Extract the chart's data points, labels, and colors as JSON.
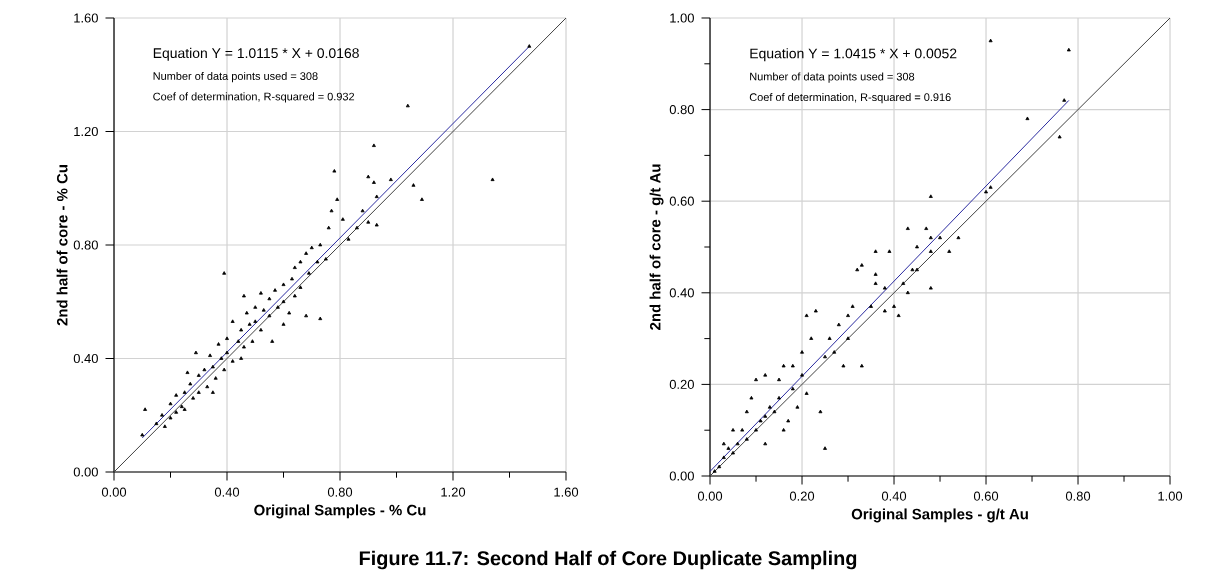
{
  "chart_data": [
    {
      "type": "scatter",
      "xlabel": "Original Samples - % Cu",
      "ylabel": "2nd half of core - % Cu",
      "grid": true,
      "xlim": [
        0,
        1.6
      ],
      "ylim": [
        0,
        1.6
      ],
      "xticks": [
        {
          "value": 0,
          "label": "0.00"
        },
        {
          "value": 0.2,
          "label": null
        },
        {
          "value": 0.4,
          "label": "0.40"
        },
        {
          "value": 0.6,
          "label": null
        },
        {
          "value": 0.8,
          "label": "0.80"
        },
        {
          "value": 1.0,
          "label": null
        },
        {
          "value": 1.2,
          "label": "1.20"
        },
        {
          "value": 1.4,
          "label": null
        },
        {
          "value": 1.6,
          "label": "1.60"
        }
      ],
      "yticks": [
        {
          "value": 0,
          "label": "0.00"
        },
        {
          "value": 0.4,
          "label": "0.40"
        },
        {
          "value": 0.8,
          "label": "0.80"
        },
        {
          "value": 1.2,
          "label": "1.20"
        },
        {
          "value": 1.6,
          "label": "1.60"
        }
      ],
      "annotations": [
        "Equation Y = 1.0115 * X + 0.0168",
        "Number of data points used = 308",
        "Coef of determination, R-squared = 0.932"
      ],
      "series": [
        {
          "marker": "triangle",
          "color": "#000000",
          "x": [
            1.47,
            1.04,
            1.34,
            0.92,
            1.06,
            1.09,
            0.98,
            0.9,
            0.92,
            0.93,
            0.93,
            0.88,
            0.86,
            0.9,
            0.78,
            0.79,
            0.77,
            0.81,
            0.83,
            0.39,
            0.73,
            0.68,
            0.1,
            0.11,
            0.15,
            0.17,
            0.18,
            0.2,
            0.2,
            0.22,
            0.22,
            0.24,
            0.25,
            0.25,
            0.27,
            0.28,
            0.29,
            0.3,
            0.3,
            0.32,
            0.33,
            0.34,
            0.35,
            0.36,
            0.37,
            0.38,
            0.39,
            0.4,
            0.4,
            0.42,
            0.42,
            0.44,
            0.45,
            0.46,
            0.47,
            0.48,
            0.49,
            0.5,
            0.5,
            0.52,
            0.52,
            0.53,
            0.55,
            0.55,
            0.57,
            0.58,
            0.6,
            0.6,
            0.62,
            0.63,
            0.64,
            0.66,
            0.66,
            0.68,
            0.69,
            0.7,
            0.72,
            0.73,
            0.75,
            0.76,
            0.56,
            0.46,
            0.35,
            0.26,
            0.6,
            0.64,
            0.45
          ],
          "values": [
            1.5,
            1.29,
            1.03,
            1.15,
            1.01,
            0.96,
            1.03,
            1.04,
            1.02,
            0.97,
            0.87,
            0.92,
            0.86,
            0.88,
            1.06,
            0.96,
            0.92,
            0.89,
            0.82,
            0.7,
            0.54,
            0.55,
            0.13,
            0.22,
            0.17,
            0.2,
            0.16,
            0.24,
            0.19,
            0.21,
            0.27,
            0.23,
            0.28,
            0.22,
            0.31,
            0.26,
            0.42,
            0.34,
            0.28,
            0.36,
            0.3,
            0.41,
            0.37,
            0.33,
            0.45,
            0.4,
            0.36,
            0.47,
            0.42,
            0.53,
            0.39,
            0.46,
            0.5,
            0.44,
            0.56,
            0.52,
            0.46,
            0.58,
            0.53,
            0.63,
            0.5,
            0.57,
            0.61,
            0.55,
            0.64,
            0.58,
            0.6,
            0.66,
            0.56,
            0.68,
            0.62,
            0.74,
            0.65,
            0.77,
            0.7,
            0.79,
            0.74,
            0.8,
            0.75,
            0.86,
            0.46,
            0.62,
            0.28,
            0.35,
            0.52,
            0.72,
            0.4
          ]
        },
        {
          "type": "line",
          "marker": "none",
          "color": "#2a2aa0",
          "x": [
            0.1,
            1.47
          ],
          "values": [
            0.12,
            1.5
          ]
        },
        {
          "type": "line",
          "marker": "none",
          "color": "#404040",
          "x": [
            0,
            1.6
          ],
          "values": [
            0,
            1.6
          ]
        }
      ]
    },
    {
      "type": "scatter",
      "xlabel": "Original Samples - g/t Au",
      "ylabel": "2nd half of core - g/t Au",
      "grid": true,
      "xlim": [
        0,
        1.0
      ],
      "ylim": [
        0,
        1.0
      ],
      "xticks": [
        {
          "value": 0,
          "label": "0.00"
        },
        {
          "value": 0.1,
          "label": null
        },
        {
          "value": 0.2,
          "label": "0.20"
        },
        {
          "value": 0.3,
          "label": null
        },
        {
          "value": 0.4,
          "label": "0.40"
        },
        {
          "value": 0.5,
          "label": null
        },
        {
          "value": 0.6,
          "label": "0.60"
        },
        {
          "value": 0.7,
          "label": null
        },
        {
          "value": 0.8,
          "label": "0.80"
        },
        {
          "value": 0.9,
          "label": null
        },
        {
          "value": 1.0,
          "label": "1.00"
        }
      ],
      "yticks": [
        {
          "value": 0,
          "label": "0.00"
        },
        {
          "value": 0.1,
          "label": null
        },
        {
          "value": 0.2,
          "label": "0.20"
        },
        {
          "value": 0.3,
          "label": null
        },
        {
          "value": 0.4,
          "label": "0.40"
        },
        {
          "value": 0.5,
          "label": null
        },
        {
          "value": 0.6,
          "label": "0.60"
        },
        {
          "value": 0.7,
          "label": null
        },
        {
          "value": 0.8,
          "label": "0.80"
        },
        {
          "value": 0.9,
          "label": null
        },
        {
          "value": 1.0,
          "label": "1.00"
        }
      ],
      "annotations": [
        "Equation Y = 1.0415 * X + 0.0052",
        "Number of data points used = 308",
        "Coef of determination, R-squared = 0.916",
        "Figure 11.7: Second Half of Core Duplicate Sampling"
      ],
      "series": [
        {
          "marker": "triangle",
          "color": "#000000",
          "x": [
            0.61,
            0.78,
            0.77,
            0.69,
            0.76,
            0.6,
            0.61,
            0.48,
            0.43,
            0.47,
            0.48,
            0.5,
            0.54,
            0.45,
            0.52,
            0.48,
            0.36,
            0.39,
            0.33,
            0.32,
            0.44,
            0.45,
            0.36,
            0.42,
            0.48,
            0.38,
            0.43,
            0.36,
            0.41,
            0.38,
            0.4,
            0.35,
            0.31,
            0.3,
            0.21,
            0.23,
            0.22,
            0.28,
            0.26,
            0.3,
            0.33,
            0.24,
            0.25,
            0.2,
            0.25,
            0.27,
            0.29,
            0.18,
            0.2,
            0.16,
            0.18,
            0.21,
            0.15,
            0.12,
            0.14,
            0.12,
            0.13,
            0.11,
            0.1,
            0.09,
            0.1,
            0.08,
            0.07,
            0.08,
            0.06,
            0.05,
            0.05,
            0.04,
            0.03,
            0.02,
            0.01,
            0.03,
            0.15,
            0.12,
            0.16,
            0.17,
            0.19
          ],
          "values": [
            0.95,
            0.93,
            0.82,
            0.78,
            0.74,
            0.62,
            0.63,
            0.61,
            0.54,
            0.54,
            0.52,
            0.52,
            0.52,
            0.5,
            0.49,
            0.49,
            0.49,
            0.49,
            0.46,
            0.45,
            0.45,
            0.45,
            0.44,
            0.42,
            0.41,
            0.41,
            0.4,
            0.42,
            0.35,
            0.36,
            0.37,
            0.37,
            0.37,
            0.35,
            0.35,
            0.36,
            0.3,
            0.33,
            0.3,
            0.3,
            0.24,
            0.14,
            0.06,
            0.27,
            0.26,
            0.27,
            0.24,
            0.24,
            0.22,
            0.24,
            0.19,
            0.18,
            0.21,
            0.22,
            0.14,
            0.13,
            0.15,
            0.12,
            0.21,
            0.17,
            0.1,
            0.14,
            0.1,
            0.08,
            0.07,
            0.1,
            0.05,
            0.06,
            0.04,
            0.02,
            0.01,
            0.07,
            0.17,
            0.07,
            0.1,
            0.12,
            0.15
          ]
        },
        {
          "type": "line",
          "marker": "none",
          "color": "#2a2aa0",
          "x": [
            0,
            0.78
          ],
          "values": [
            0.01,
            0.82
          ]
        },
        {
          "type": "line",
          "marker": "none",
          "color": "#404040",
          "x": [
            0,
            1.0
          ],
          "values": [
            0,
            1.0
          ]
        }
      ]
    }
  ]
}
